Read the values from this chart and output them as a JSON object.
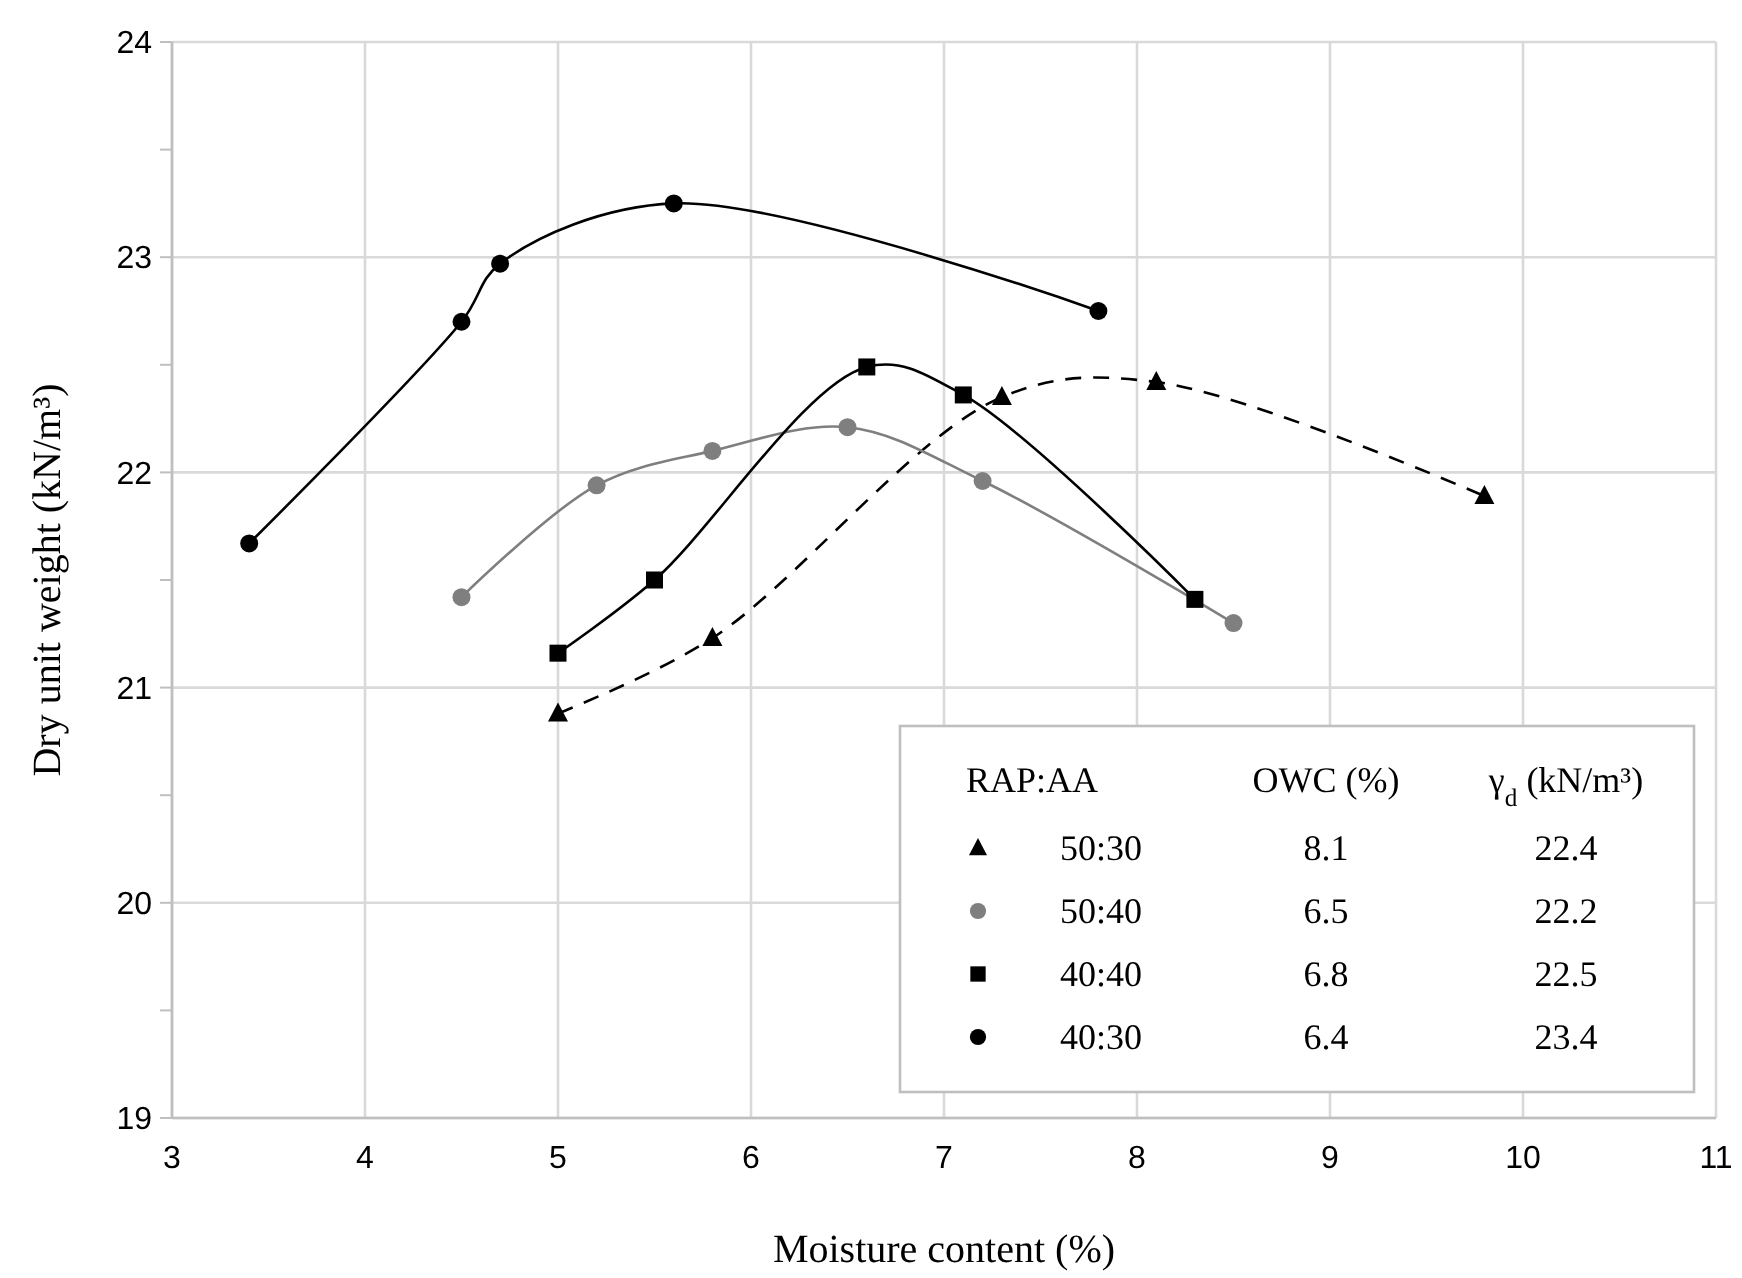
{
  "chart_data": {
    "type": "line",
    "xlabel": "Moisture content (%)",
    "ylabel": "Dry unit weight (kN/m³)",
    "xlim": [
      3,
      11
    ],
    "xticks": [
      3,
      4,
      5,
      6,
      7,
      8,
      9,
      10,
      11
    ],
    "ylim": [
      19,
      24
    ],
    "yticks": [
      19,
      {
        "value": 19.5,
        "label": null
      },
      20,
      {
        "value": 20.5,
        "label": null
      },
      21,
      {
        "value": 21.5,
        "label": null
      },
      22,
      {
        "value": 22.5,
        "label": null
      },
      23,
      {
        "value": 23.5,
        "label": null
      },
      24
    ],
    "grid": true,
    "legend": "bottom right",
    "legend_title": "RAP:AA",
    "annotations": [
      "OWC (%)",
      "γ$_{d}$ (kN/m³)",
      "8.1",
      "22.4",
      "6.5",
      "22.2",
      "6.8",
      "22.5",
      "6.4",
      "23.4"
    ],
    "series": [
      {
        "name": "50:30",
        "color": "#000000",
        "marker": "triangle",
        "line_style": "dashed",
        "x": [
          5,
          5.8,
          7.3,
          8.1,
          9.8
        ],
        "values": [
          20.88,
          21.23,
          22.35,
          22.42,
          21.89
        ]
      },
      {
        "name": "50:40",
        "color": "#7f7f7f",
        "marker": "circle",
        "line_style": "solid",
        "x": [
          4.5,
          5.2,
          5.8,
          6.5,
          7.2,
          8.5
        ],
        "values": [
          21.42,
          21.94,
          22.1,
          22.21,
          21.96,
          21.3
        ]
      },
      {
        "name": "40:40",
        "color": "#000000",
        "marker": "square",
        "line_style": "solid",
        "x": [
          5,
          5.5,
          6.6,
          7.1,
          8.3
        ],
        "values": [
          21.16,
          21.5,
          22.49,
          22.36,
          21.41
        ]
      },
      {
        "name": "40:30",
        "color": "#000000",
        "marker": "circle",
        "line_style": "solid",
        "x": [
          3.4,
          4.5,
          4.7,
          5.6,
          7.8
        ],
        "values": [
          21.67,
          22.7,
          22.97,
          23.25,
          22.75
        ]
      }
    ]
  }
}
